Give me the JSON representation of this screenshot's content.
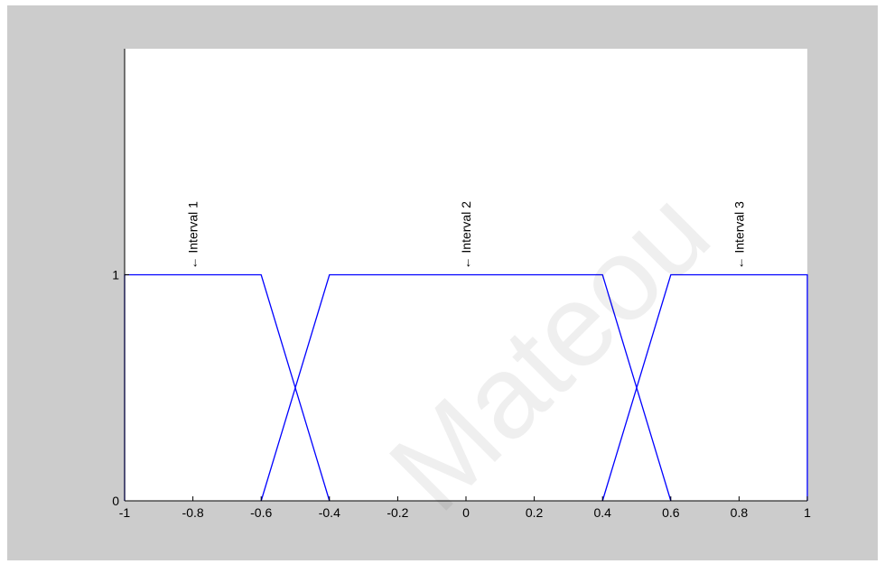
{
  "watermark": "Mateou",
  "colors": {
    "figure_bg": "#cccccc",
    "axes_bg": "#ffffff",
    "line": "#0000ff",
    "axis": "#000000"
  },
  "chart_data": {
    "type": "line",
    "title": "",
    "xlabel": "",
    "ylabel": "",
    "xlim": [
      -1,
      1
    ],
    "ylim": [
      0,
      2
    ],
    "x_ticks": [
      -1,
      -0.8,
      -0.6,
      -0.4,
      -0.2,
      0,
      0.2,
      0.4,
      0.6,
      0.8,
      1
    ],
    "x_tick_labels": [
      "-1",
      "-0.8",
      "-0.6",
      "-0.4",
      "-0.2",
      "0",
      "0.2",
      "0.4",
      "0.6",
      "0.8",
      "1"
    ],
    "y_ticks": [
      0,
      1
    ],
    "y_tick_labels": [
      "0",
      "1"
    ],
    "grid": false,
    "series": [
      {
        "x": [
          -1,
          -1,
          -0.6,
          -0.4
        ],
        "y": [
          0,
          1,
          1,
          0
        ]
      },
      {
        "x": [
          -0.6,
          -0.4,
          0.4,
          0.6
        ],
        "y": [
          0,
          1,
          1,
          0
        ]
      },
      {
        "x": [
          0.4,
          0.6,
          1,
          1
        ],
        "y": [
          0,
          1,
          1,
          0
        ]
      }
    ],
    "annotations": [
      {
        "text": "← Interval 1",
        "x": -0.8,
        "y": 1
      },
      {
        "text": "← Interval 2",
        "x": 0,
        "y": 1
      },
      {
        "text": "← Interval 3",
        "x": 0.8,
        "y": 1
      }
    ]
  }
}
